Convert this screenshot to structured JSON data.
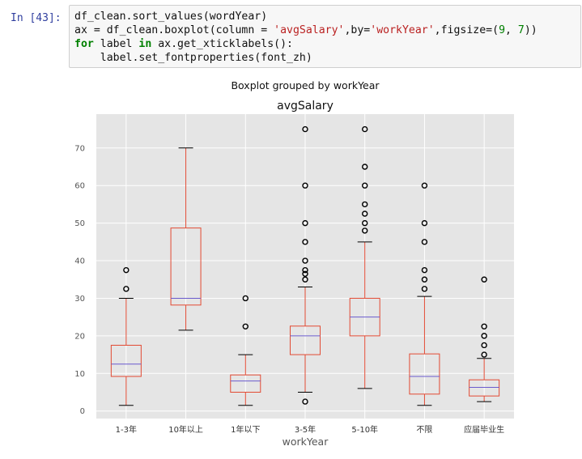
{
  "cell": {
    "prompt": "In [43]:",
    "code_lines": [
      [
        {
          "t": "df_clean.sort_values(wordYear)",
          "c": ""
        }
      ],
      [
        {
          "t": "ax = df_clean.boxplot(column = ",
          "c": ""
        },
        {
          "t": "'avgSalary'",
          "c": "str"
        },
        {
          "t": ",by=",
          "c": ""
        },
        {
          "t": "'workYear'",
          "c": "str"
        },
        {
          "t": ",figsize=(",
          "c": ""
        },
        {
          "t": "9",
          "c": "num"
        },
        {
          "t": ", ",
          "c": ""
        },
        {
          "t": "7",
          "c": "num"
        },
        {
          "t": "))",
          "c": ""
        }
      ],
      [
        {
          "t": "for",
          "c": "kw"
        },
        {
          "t": " label ",
          "c": ""
        },
        {
          "t": "in",
          "c": "kw"
        },
        {
          "t": " ax.get_xticklabels():",
          "c": ""
        }
      ],
      [
        {
          "t": "    label.set_fontproperties(font_zh)",
          "c": ""
        }
      ]
    ]
  },
  "chart_data": {
    "type": "boxplot",
    "suptitle": "Boxplot grouped by workYear",
    "title": "avgSalary",
    "xlabel": "workYear",
    "ylabel": "",
    "ylim": [
      -2,
      79
    ],
    "yticks": [
      0,
      10,
      20,
      30,
      40,
      50,
      60,
      70
    ],
    "grid": true,
    "colors": {
      "axes_bg": "#e5e5e5",
      "grid": "#ffffff",
      "box": "#e24a33",
      "median": "#6a5acd",
      "flier": "#000000"
    },
    "categories": [
      "1-3年",
      "10年以上",
      "1年以下",
      "3-5年",
      "5-10年",
      "不限",
      "应届毕业生"
    ],
    "boxes": [
      {
        "whislo": 1.5,
        "q1": 9.2,
        "med": 12.5,
        "q3": 17.5,
        "whishi": 30,
        "fliers": [
          32.5,
          37.5
        ]
      },
      {
        "whislo": 21.5,
        "q1": 28.2,
        "med": 30,
        "q3": 48.7,
        "whishi": 70,
        "fliers": []
      },
      {
        "whislo": 1.5,
        "q1": 5,
        "med": 8,
        "q3": 9.6,
        "whishi": 15,
        "fliers": [
          22.5,
          30
        ]
      },
      {
        "whislo": 5,
        "q1": 15,
        "med": 20,
        "q3": 22.6,
        "whishi": 33,
        "fliers": [
          2.5,
          35,
          36.5,
          37.5,
          40,
          45,
          50,
          60,
          75
        ]
      },
      {
        "whislo": 6,
        "q1": 20,
        "med": 25,
        "q3": 30,
        "whishi": 45,
        "fliers": [
          48,
          50,
          52.5,
          55,
          60,
          65,
          75
        ]
      },
      {
        "whislo": 1.5,
        "q1": 4.5,
        "med": 9.2,
        "q3": 15.2,
        "whishi": 30.5,
        "fliers": [
          32.5,
          35,
          37.5,
          45,
          50,
          60
        ]
      },
      {
        "whislo": 2.5,
        "q1": 4,
        "med": 6.3,
        "q3": 8.3,
        "whishi": 14,
        "fliers": [
          15,
          17.5,
          20,
          22.5,
          35
        ]
      }
    ]
  }
}
